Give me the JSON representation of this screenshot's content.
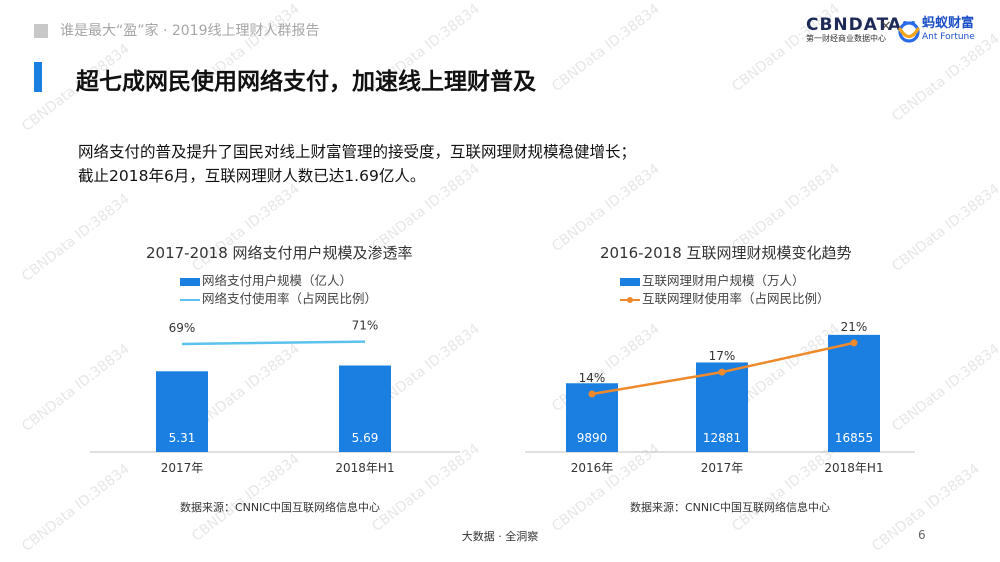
{
  "header": {
    "report_title": "谁是最大“盈”家 · 2019线上理财人群报告",
    "logo_cbn_main": "CBNDATA",
    "logo_cbn_sub": "第一财经商业数据中心",
    "logo_times": "×",
    "logo_ant_main": "蚂蚁财富",
    "logo_ant_sub": "Ant Fortune"
  },
  "title": "超七成网民使用网络支付，加速线上理财普及",
  "intro": {
    "line1": "网络支付的普及提升了国民对线上财富管理的接受度，互联网理财规模稳健增长；",
    "line2": "截止2018年6月，互联网理财人数已达1.69亿人。"
  },
  "colors": {
    "bar": "#1a7fe0",
    "line_left": "#5bc2ee",
    "line_right": "#ef8a2c",
    "accent": "#1a7fe0"
  },
  "charts": {
    "left": {
      "title": "2017-2018 网络支付用户规模及渗透率",
      "legend_bar": "网络支付用户规模（亿人）",
      "legend_line": "网络支付使用率（占网民比例）",
      "source": "数据来源：CNNIC中国互联网络信息中心"
    },
    "right": {
      "title": "2016-2018 互联网理财规模变化趋势",
      "legend_bar": "互联网理财用户规模（万人）",
      "legend_line": "互联网理财使用率（占网民比例）",
      "source": "数据来源：CNNIC中国互联网络信息中心"
    }
  },
  "chart_data": [
    {
      "type": "bar",
      "title": "2017-2018 网络支付用户规模及渗透率",
      "categories": [
        "2017年",
        "2018年H1"
      ],
      "series": [
        {
          "name": "网络支付用户规模（亿人）",
          "type": "bar",
          "values": [
            5.31,
            5.69
          ],
          "labels": [
            "5.31",
            "5.69"
          ]
        },
        {
          "name": "网络支付使用率（占网民比例）",
          "type": "line",
          "values": [
            69,
            71
          ],
          "labels": [
            "69%",
            "71%"
          ]
        }
      ]
    },
    {
      "type": "bar",
      "title": "2016-2018 互联网理财规模变化趋势",
      "categories": [
        "2016年",
        "2017年",
        "2018年H1"
      ],
      "series": [
        {
          "name": "互联网理财用户规模（万人）",
          "type": "bar",
          "values": [
            9890,
            12881,
            16855
          ],
          "labels": [
            "9890",
            "12881",
            "16855"
          ]
        },
        {
          "name": "互联网理财使用率（占网民比例）",
          "type": "line",
          "values": [
            14,
            17,
            21
          ],
          "labels": [
            "14%",
            "17%",
            "21%"
          ]
        }
      ]
    }
  ],
  "watermark": "CBNData ID:38834",
  "footer": {
    "text": "大数据 · 全洞察",
    "page": "6"
  }
}
